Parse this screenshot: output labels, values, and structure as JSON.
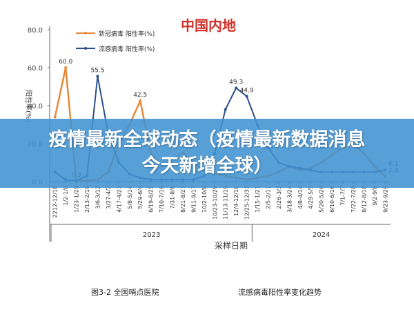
{
  "chart_data": {
    "type": "line",
    "title": "中国内地",
    "ylabel": "阳性率(%)",
    "xlabel": "采样日期",
    "year_labels": [
      "2023",
      "2024"
    ],
    "categories": [
      "2212-12/18",
      "1/2-1/8",
      "1/23-1/29",
      "2/13-2/19",
      "3/6-3/12",
      "3/27-4/2",
      "4/17-4/23",
      "5/8-5/14",
      "5/29-6/4",
      "6/19-6/25",
      "7/10-7/16",
      "7/31-8/6",
      "8/21-8/27",
      "9/11-9/17",
      "10/2-10/8",
      "10/23-10/29",
      "11/13-11/19",
      "12/4-12/10",
      "12/25-12/31",
      "1/15-1/21",
      "2/5-2/11",
      "2/26-3/3",
      "3/18-3/24",
      "4/8-4/14",
      "4/29-5/5",
      "5/20-5/26",
      "6/10-6/16",
      "7/1-7/7",
      "7/22-7/28",
      "8/12-8/18",
      "9/2-9/8",
      "9/23-9/29"
    ],
    "series": [
      {
        "name": "新冠病毒 阳性率(%)",
        "color": "#e8893a",
        "values": [
          34,
          60,
          0.3,
          0.5,
          1,
          5,
          20,
          30,
          42.5,
          15,
          8,
          12,
          15,
          10,
          6,
          4,
          3,
          2,
          1,
          2,
          3,
          5,
          8,
          6,
          7,
          10,
          14,
          18,
          20,
          15,
          8,
          2.8
        ],
        "value_labels": [
          null,
          "60.0",
          "0.3",
          null,
          null,
          null,
          null,
          null,
          "42.5",
          null,
          null,
          null,
          null,
          null,
          null,
          null,
          null,
          null,
          null,
          null,
          null,
          null,
          null,
          null,
          null,
          null,
          null,
          null,
          null,
          null,
          null,
          "2.8"
        ]
      },
      {
        "name": "流感病毒 阳性率(%)",
        "color": "#2b4f8c",
        "values": [
          5,
          1,
          0.5,
          3,
          55.5,
          25,
          10,
          4,
          2,
          1,
          1,
          1,
          1,
          1,
          3,
          15,
          38,
          49.3,
          44.9,
          30,
          18,
          10,
          8,
          7,
          6,
          5,
          5,
          5,
          5,
          5,
          5,
          6.1
        ],
        "value_labels": [
          null,
          null,
          null,
          null,
          "55.5",
          null,
          null,
          null,
          null,
          null,
          null,
          null,
          null,
          null,
          null,
          null,
          null,
          "49.3",
          "44.9",
          null,
          null,
          null,
          null,
          null,
          null,
          null,
          null,
          null,
          null,
          null,
          null,
          "6.1"
        ]
      }
    ],
    "ylim": [
      0,
      80
    ],
    "yticks": [
      {
        "value": 0,
        "label": "0.0"
      },
      {
        "value": 20,
        "label": "20.0"
      },
      {
        "value": 40,
        "label": "40.0"
      },
      {
        "value": 60,
        "label": "60.0"
      },
      {
        "value": 80,
        "label": "80.0"
      }
    ],
    "legend": "top-left"
  },
  "banner": {
    "title": "疫情最新全球动态（疫情最新数据消息今天新增全球）"
  },
  "caption": {
    "left": "图3-2 全国哨点医院",
    "right": "流感病毒阳性率变化趋势"
  }
}
